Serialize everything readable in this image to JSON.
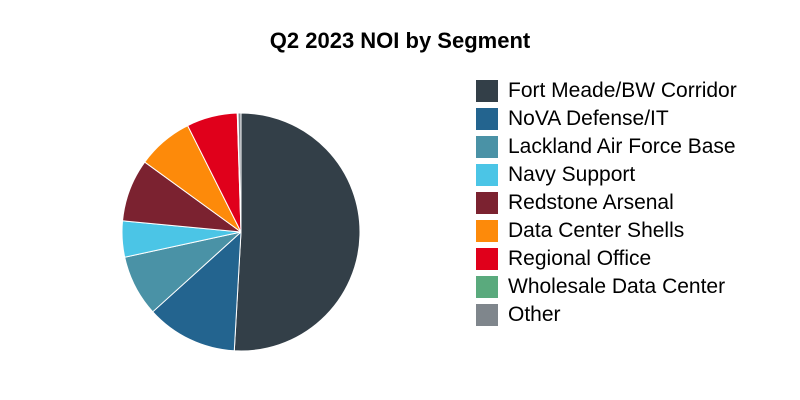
{
  "chart_data": {
    "type": "pie",
    "title": "Q2 2023 NOI by Segment",
    "legend_position": "right",
    "slices": [
      {
        "label": "Fort Meade/BW Corridor",
        "value": 50.9,
        "color": "#333f48"
      },
      {
        "label": "NoVA Defense/IT",
        "value": 12.4,
        "color": "#23648f"
      },
      {
        "label": "Lackland Air Force Base",
        "value": 8.3,
        "color": "#4a92a6"
      },
      {
        "label": "Navy Support",
        "value": 4.9,
        "color": "#4bc5e6"
      },
      {
        "label": "Redstone Arsenal",
        "value": 8.5,
        "color": "#7b2230"
      },
      {
        "label": "Data Center Shells",
        "value": 7.6,
        "color": "#fd8a0a"
      },
      {
        "label": "Regional Office",
        "value": 6.9,
        "color": "#e0001b"
      },
      {
        "label": "Wholesale Data Center",
        "value": 0.1,
        "color": "#5aaa7d"
      },
      {
        "label": "Other",
        "value": 0.4,
        "color": "#7f868c"
      }
    ]
  }
}
